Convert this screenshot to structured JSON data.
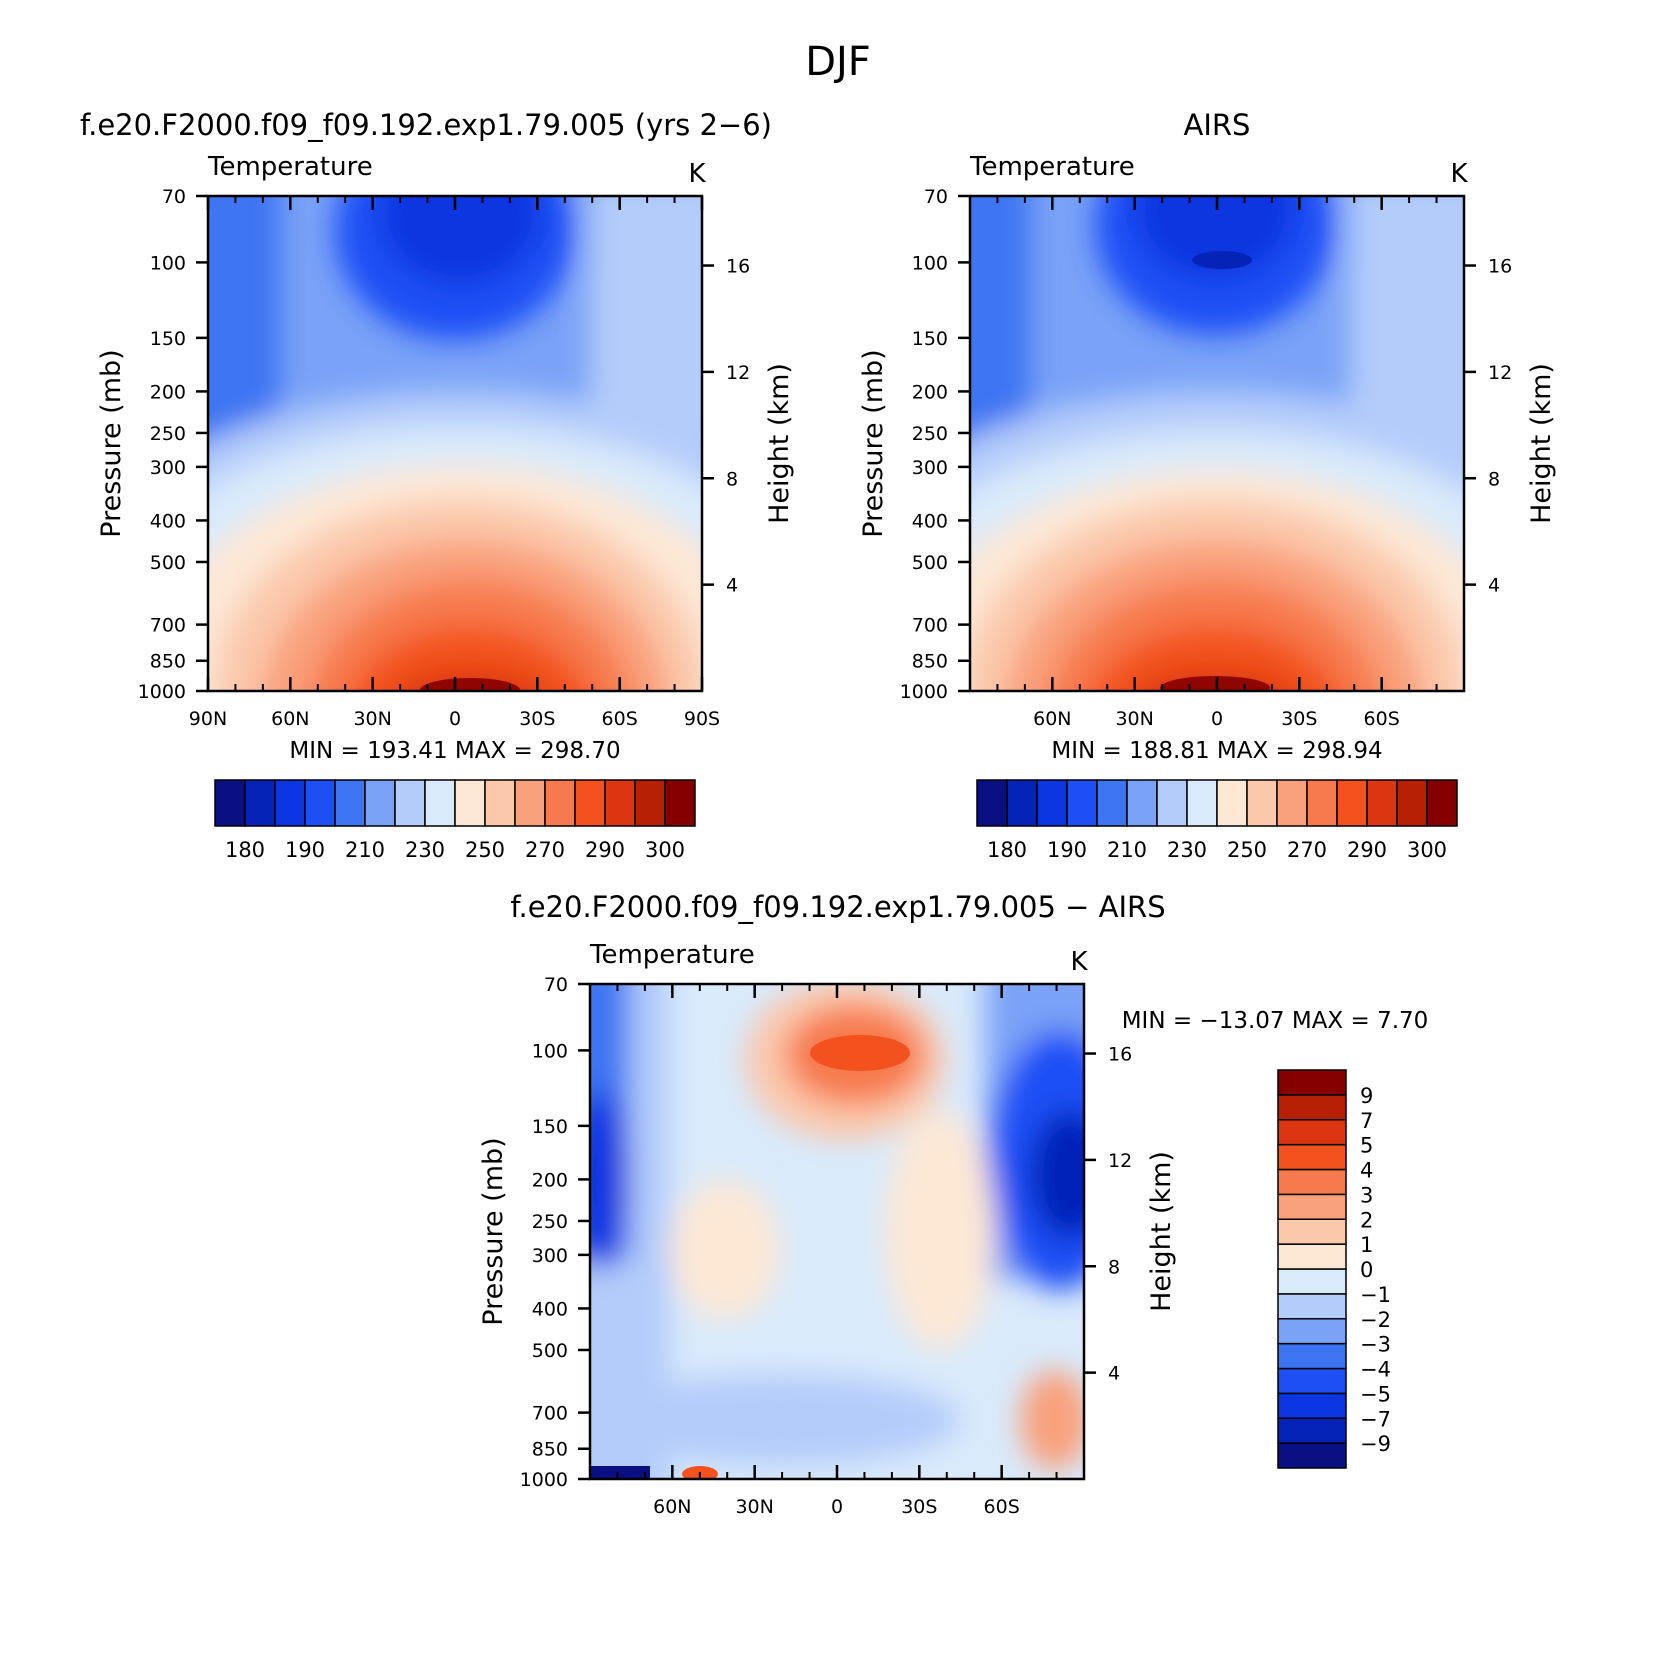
{
  "figure_title": "DJF",
  "chart_data": [
    {
      "type": "heatmap",
      "panel_id": "model",
      "title": "f.e20.F2000.f09_f09.192.exp1.79.005 (yrs 2−6)",
      "subtitle_left": "Temperature",
      "subtitle_right": "K",
      "xlabel": "",
      "ylabel": "Pressure (mb)",
      "ylabel_right": "Height (km)",
      "xlim": [
        90,
        -90
      ],
      "ylim": [
        1000,
        70
      ],
      "x_ticks": [
        90,
        60,
        30,
        0,
        -30,
        -60,
        -90
      ],
      "x_tick_labels": [
        "90N",
        "60N",
        "30N",
        "0",
        "30S",
        "60S",
        "90S"
      ],
      "y_ticks": [
        70,
        100,
        150,
        200,
        250,
        300,
        400,
        500,
        700,
        850,
        1000
      ],
      "y_tick_labels": [
        "70",
        "100",
        "150",
        "200",
        "250",
        "300",
        "400",
        "500",
        "700",
        "850",
        "1000"
      ],
      "y2_ticks": [
        4,
        8,
        12,
        16
      ],
      "y2_tick_labels": [
        "4",
        "8",
        "12",
        "16"
      ],
      "stats": {
        "min_label": "MIN",
        "min": "193.41",
        "max_label": "MAX",
        "max": "298.70"
      },
      "colorbar": {
        "orientation": "horizontal",
        "levels": [
          175,
          180,
          185,
          190,
          200,
          210,
          220,
          230,
          240,
          250,
          260,
          270,
          280,
          290,
          295,
          300
        ],
        "labels": [
          "180",
          "190",
          "210",
          "230",
          "250",
          "270",
          "290",
          "300"
        ],
        "colors": [
          "#0a0f82",
          "#0623b8",
          "#0a35e0",
          "#1e4ff5",
          "#3d74f2",
          "#7aa2f7",
          "#b3ccfa",
          "#d9eafb",
          "#fde8d6",
          "#fbc8ab",
          "#f9a07c",
          "#f77a4e",
          "#f3521f",
          "#db3511",
          "#b82006",
          "#860000"
        ]
      },
      "field_bands": [
        {
          "p": 70,
          "t": 210,
          "warm": 0
        },
        {
          "p": 100,
          "t": 196,
          "warm": 0
        },
        {
          "p": 150,
          "t": 205,
          "warm": 0
        },
        {
          "p": 200,
          "t": 215,
          "warm": 0
        },
        {
          "p": 250,
          "t": 225,
          "warm": 0
        },
        {
          "p": 300,
          "t": 236,
          "warm": 0
        },
        {
          "p": 400,
          "t": 251,
          "warm": 0
        },
        {
          "p": 500,
          "t": 262,
          "warm": 0
        },
        {
          "p": 700,
          "t": 281,
          "warm": 0
        },
        {
          "p": 850,
          "t": 291,
          "warm": 0
        },
        {
          "p": 1000,
          "t": 298,
          "warm": 0
        }
      ]
    },
    {
      "type": "heatmap",
      "panel_id": "obs",
      "title": "AIRS",
      "subtitle_left": "Temperature",
      "subtitle_right": "K",
      "xlabel": "",
      "ylabel": "Pressure (mb)",
      "ylabel_right": "Height (km)",
      "xlim": [
        90,
        -90
      ],
      "ylim": [
        1000,
        70
      ],
      "x_ticks": [
        60,
        30,
        0,
        -30,
        -60
      ],
      "x_tick_labels": [
        "60N",
        "30N",
        "0",
        "30S",
        "60S"
      ],
      "y_ticks": [
        70,
        100,
        150,
        200,
        250,
        300,
        400,
        500,
        700,
        850,
        1000
      ],
      "y_tick_labels": [
        "70",
        "100",
        "150",
        "200",
        "250",
        "300",
        "400",
        "500",
        "700",
        "850",
        "1000"
      ],
      "y2_ticks": [
        4,
        8,
        12,
        16
      ],
      "y2_tick_labels": [
        "4",
        "8",
        "12",
        "16"
      ],
      "stats": {
        "min_label": "MIN",
        "min": "188.81",
        "max_label": "MAX",
        "max": "298.94"
      },
      "colorbar": {
        "orientation": "horizontal",
        "levels": [
          175,
          180,
          185,
          190,
          200,
          210,
          220,
          230,
          240,
          250,
          260,
          270,
          280,
          290,
          295,
          300
        ],
        "labels": [
          "180",
          "190",
          "210",
          "230",
          "250",
          "270",
          "290",
          "300"
        ],
        "colors": [
          "#0a0f82",
          "#0623b8",
          "#0a35e0",
          "#1e4ff5",
          "#3d74f2",
          "#7aa2f7",
          "#b3ccfa",
          "#d9eafb",
          "#fde8d6",
          "#fbc8ab",
          "#f9a07c",
          "#f77a4e",
          "#f3521f",
          "#db3511",
          "#b82006",
          "#860000"
        ]
      }
    },
    {
      "type": "heatmap",
      "panel_id": "diff",
      "title": "f.e20.F2000.f09_f09.192.exp1.79.005 − AIRS",
      "subtitle_left": "Temperature",
      "subtitle_right": "K",
      "xlabel": "",
      "ylabel": "Pressure (mb)",
      "ylabel_right": "Height (km)",
      "xlim": [
        90,
        -90
      ],
      "ylim": [
        1000,
        70
      ],
      "x_ticks": [
        60,
        30,
        0,
        -30,
        -60
      ],
      "x_tick_labels": [
        "60N",
        "30N",
        "0",
        "30S",
        "60S"
      ],
      "y_ticks": [
        70,
        100,
        150,
        200,
        250,
        300,
        400,
        500,
        700,
        850,
        1000
      ],
      "y_tick_labels": [
        "70",
        "100",
        "150",
        "200",
        "250",
        "300",
        "400",
        "500",
        "700",
        "850",
        "1000"
      ],
      "y2_ticks": [
        4,
        8,
        12,
        16
      ],
      "y2_tick_labels": [
        "4",
        "8",
        "12",
        "16"
      ],
      "stats": {
        "min_label": "MIN",
        "min": "−13.07",
        "max_label": "MAX",
        "max": "7.70"
      },
      "colorbar": {
        "orientation": "vertical",
        "levels": [
          -9,
          -7,
          -5,
          -4,
          -3,
          -2,
          -1,
          0,
          1,
          2,
          3,
          4,
          5,
          7,
          9
        ],
        "labels": [
          "−9",
          "−7",
          "−5",
          "−4",
          "−3",
          "−2",
          "−1",
          "0",
          "1",
          "2",
          "3",
          "4",
          "5",
          "7",
          "9"
        ],
        "colors": [
          "#0a0f82",
          "#0623b8",
          "#0a35e0",
          "#1e4ff5",
          "#3d74f2",
          "#7aa2f7",
          "#b3ccfa",
          "#d9eafb",
          "#fde8d6",
          "#fbc8ab",
          "#f9a07c",
          "#f77a4e",
          "#f3521f",
          "#db3511",
          "#b82006",
          "#860000"
        ]
      }
    }
  ]
}
